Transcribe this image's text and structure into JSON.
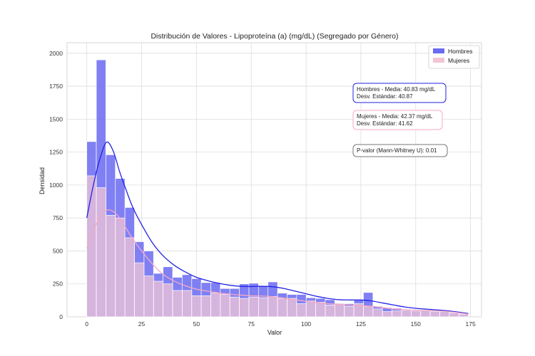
{
  "chart_data": {
    "type": "histogram",
    "title": "Distribución de Valores - Lipoproteína (a) (mg/dL) (Segregado por Género)",
    "xlabel": "Valor",
    "ylabel": "Densidad",
    "xlim": [
      -9,
      180
    ],
    "ylim": [
      0,
      2080
    ],
    "xticks": [
      0,
      25,
      50,
      75,
      100,
      125,
      150,
      175
    ],
    "yticks": [
      0,
      250,
      500,
      750,
      1000,
      1250,
      1500,
      1750,
      2000
    ],
    "grid": true,
    "legend": {
      "placement": "top-right",
      "entries": [
        "Hombres",
        "Mujeres"
      ]
    },
    "bin_edges": [
      0,
      4.35,
      8.7,
      13.05,
      17.4,
      21.75,
      26.1,
      30.45,
      34.8,
      39.15,
      43.5,
      47.85,
      52.2,
      56.55,
      60.9,
      65.25,
      69.6,
      73.95,
      78.3,
      82.65,
      87,
      91.35,
      95.7,
      100.05,
      104.4,
      108.75,
      113.1,
      117.45,
      121.8,
      126.15,
      130.5,
      134.85,
      139.2,
      143.55,
      147.9,
      152.25,
      156.6,
      160.95,
      165.3,
      169.65,
      174
    ],
    "series": [
      {
        "name": "Hombres",
        "color": "#6a6af2",
        "line_color": "#2222e6",
        "counts": [
          1330,
          1950,
          1230,
          1050,
          830,
          570,
          500,
          330,
          380,
          300,
          320,
          290,
          260,
          260,
          215,
          215,
          250,
          255,
          235,
          265,
          180,
          170,
          170,
          145,
          140,
          130,
          105,
          100,
          130,
          185,
          80,
          70,
          65,
          55,
          55,
          50,
          45,
          40,
          35,
          25
        ],
        "kde": [
          [
            0,
            750
          ],
          [
            3,
            1000
          ],
          [
            6,
            1200
          ],
          [
            9,
            1325
          ],
          [
            12,
            1260
          ],
          [
            15,
            1100
          ],
          [
            18,
            960
          ],
          [
            21,
            830
          ],
          [
            25,
            700
          ],
          [
            30,
            560
          ],
          [
            35,
            460
          ],
          [
            40,
            390
          ],
          [
            45,
            340
          ],
          [
            50,
            300
          ],
          [
            55,
            275
          ],
          [
            60,
            255
          ],
          [
            65,
            240
          ],
          [
            70,
            232
          ],
          [
            75,
            230
          ],
          [
            80,
            232
          ],
          [
            85,
            228
          ],
          [
            90,
            215
          ],
          [
            95,
            195
          ],
          [
            100,
            175
          ],
          [
            105,
            155
          ],
          [
            110,
            140
          ],
          [
            115,
            130
          ],
          [
            120,
            128
          ],
          [
            125,
            128
          ],
          [
            130,
            120
          ],
          [
            135,
            105
          ],
          [
            140,
            90
          ],
          [
            145,
            75
          ],
          [
            150,
            65
          ],
          [
            155,
            58
          ],
          [
            160,
            52
          ],
          [
            165,
            45
          ],
          [
            170,
            35
          ],
          [
            174,
            25
          ]
        ]
      },
      {
        "name": "Mujeres",
        "color": "#f2c6d6",
        "line_color": "#f7a9c2",
        "counts": [
          1070,
          980,
          770,
          750,
          600,
          410,
          310,
          270,
          250,
          200,
          200,
          160,
          160,
          180,
          170,
          150,
          140,
          150,
          145,
          155,
          140,
          140,
          100,
          120,
          110,
          90,
          100,
          80,
          100,
          80,
          60,
          40,
          45,
          50,
          45,
          50,
          40,
          40,
          30,
          20
        ],
        "kde": [
          [
            0,
            520
          ],
          [
            3,
            650
          ],
          [
            6,
            760
          ],
          [
            9,
            810
          ],
          [
            12,
            800
          ],
          [
            15,
            750
          ],
          [
            18,
            670
          ],
          [
            21,
            590
          ],
          [
            25,
            500
          ],
          [
            30,
            400
          ],
          [
            35,
            320
          ],
          [
            40,
            270
          ],
          [
            45,
            235
          ],
          [
            50,
            210
          ],
          [
            55,
            195
          ],
          [
            60,
            182
          ],
          [
            65,
            172
          ],
          [
            70,
            165
          ],
          [
            75,
            160
          ],
          [
            80,
            158
          ],
          [
            85,
            152
          ],
          [
            90,
            142
          ],
          [
            95,
            130
          ],
          [
            100,
            118
          ],
          [
            105,
            108
          ],
          [
            110,
            100
          ],
          [
            115,
            95
          ],
          [
            120,
            90
          ],
          [
            125,
            85
          ],
          [
            130,
            80
          ],
          [
            135,
            70
          ],
          [
            140,
            60
          ],
          [
            145,
            55
          ],
          [
            150,
            50
          ],
          [
            155,
            48
          ],
          [
            160,
            45
          ],
          [
            165,
            40
          ],
          [
            170,
            30
          ],
          [
            174,
            20
          ]
        ]
      }
    ],
    "annotations": [
      {
        "lines": [
          "Hombres - Media: 40.83 mg/dL",
          "Desv. Estándar: 40.87"
        ],
        "border": "#2222e6"
      },
      {
        "lines": [
          "Mujeres - Media: 42.37 mg/dL",
          "Desv. Estándar: 41.62"
        ],
        "border": "#f7a9c2"
      },
      {
        "lines": [
          "P-valor (Mann-Whitney U): 0.01"
        ],
        "border": "#777777"
      }
    ]
  }
}
